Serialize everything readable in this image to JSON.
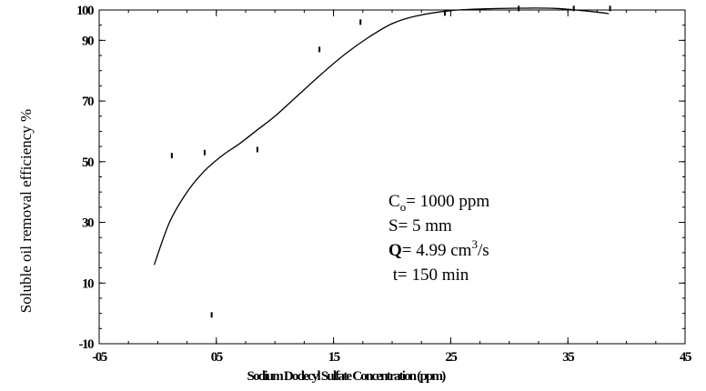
{
  "chart_data": {
    "type": "scatter",
    "xlabel": "Sodium Dodecyl Sulfate Concentration (ppm)",
    "ylabel": "Soluble oil removal efficiency %",
    "xlim": [
      -0.5,
      4.5
    ],
    "ylim": [
      -10,
      100
    ],
    "x_ticks": [
      -0.5,
      0.5,
      1.5,
      2.5,
      3.5,
      4.5
    ],
    "x_tick_labels": [
      "-05",
      "05",
      "15",
      "25",
      "35",
      "45"
    ],
    "y_ticks": [
      -10,
      10,
      30,
      50,
      70,
      90,
      100
    ],
    "y_tick_labels": [
      "-10",
      "10",
      "30",
      "50",
      "70",
      "90",
      "100"
    ],
    "grid": false,
    "series": [
      {
        "kind": "points",
        "x": [
          0.46,
          0.12,
          0.4,
          0.85,
          1.38,
          1.73,
          2.45,
          3.08,
          3.55,
          3.86
        ],
        "y": [
          -0.5,
          52,
          53,
          54,
          87,
          96,
          99,
          100.5,
          100.5,
          100.5
        ]
      },
      {
        "kind": "fit",
        "x": [
          -0.03,
          0.1,
          0.25,
          0.4,
          0.55,
          0.7,
          0.85,
          1.0,
          1.2,
          1.4,
          1.6,
          1.8,
          2.0,
          2.2,
          2.5,
          2.8,
          3.1,
          3.4,
          3.7,
          3.85
        ],
        "y": [
          16,
          30,
          40,
          47,
          52,
          56,
          60.5,
          65,
          72,
          79,
          85.5,
          91,
          95.5,
          98,
          99.8,
          100.4,
          100.6,
          100.5,
          99.5,
          98.8
        ]
      }
    ],
    "annotations": {
      "c0_prefix": "C",
      "c0_sub": "o",
      "c0_value": "= 1000 ppm",
      "s_line": "S= 5 mm",
      "q_bold": "Q",
      "q_value": "= 4.99 cm",
      "q_sup": "3",
      "q_unit": "/s",
      "t_line": " t= 150 min"
    }
  }
}
